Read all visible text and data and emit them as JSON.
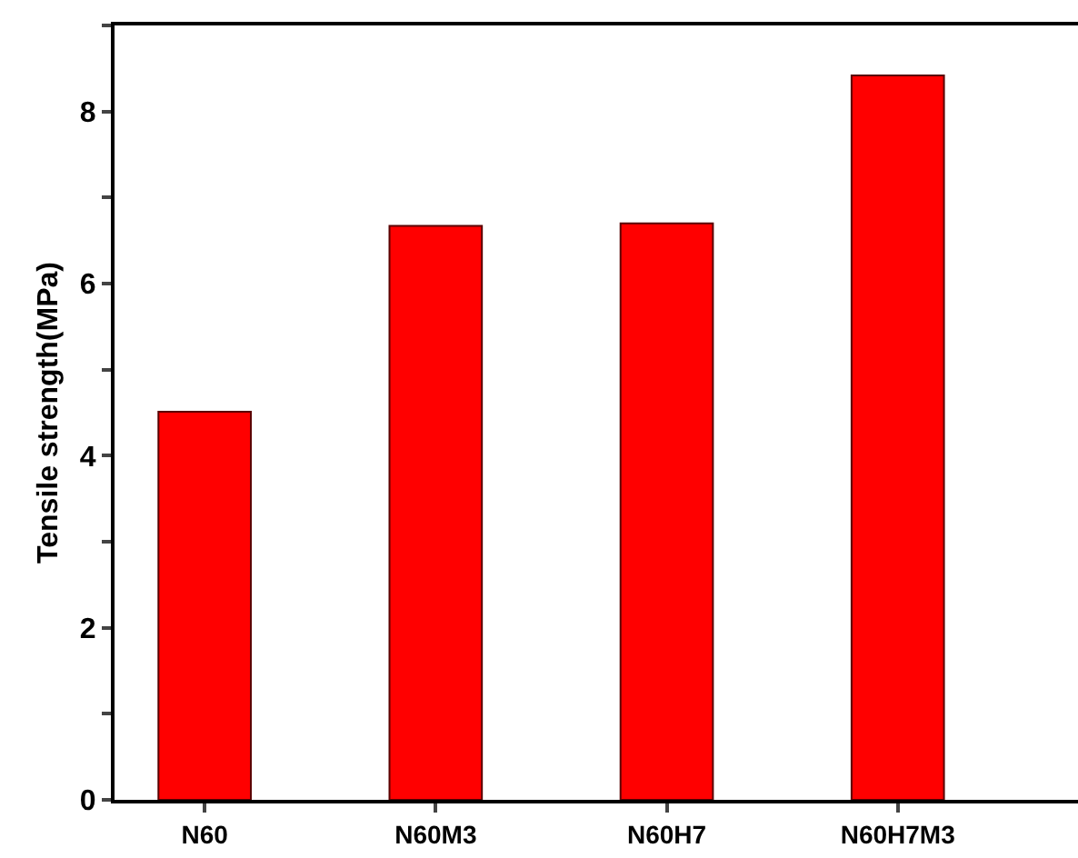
{
  "chart_data": {
    "type": "bar",
    "ylabel": "Tensile strength(MPa)",
    "categories": [
      "N60",
      "N60M3",
      "N60H7",
      "N60H7M3"
    ],
    "values": [
      4.51,
      6.67,
      6.7,
      8.42
    ],
    "color": "#ff0000",
    "ylim": [
      0,
      9
    ],
    "yticks": [
      0,
      {
        "value": 1,
        "label": null
      },
      2,
      {
        "value": 3,
        "label": null
      },
      4,
      {
        "value": 5,
        "label": null
      },
      6,
      {
        "value": 7,
        "label": null
      },
      8,
      {
        "value": 9,
        "label": null
      }
    ],
    "line_style": "solid"
  }
}
